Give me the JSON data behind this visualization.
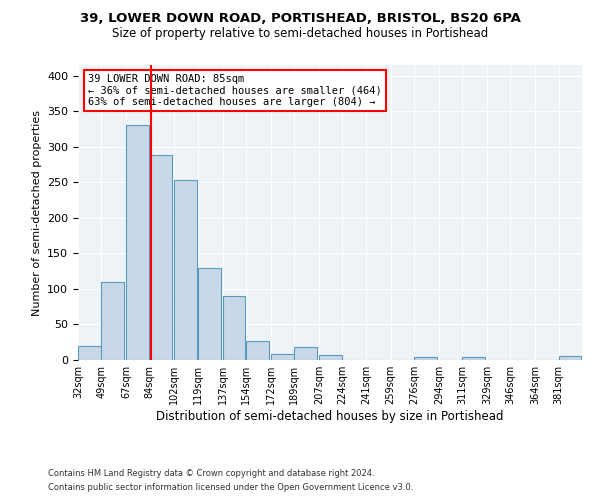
{
  "title1": "39, LOWER DOWN ROAD, PORTISHEAD, BRISTOL, BS20 6PA",
  "title2": "Size of property relative to semi-detached houses in Portishead",
  "xlabel": "Distribution of semi-detached houses by size in Portishead",
  "ylabel": "Number of semi-detached properties",
  "footnote1": "Contains HM Land Registry data © Crown copyright and database right 2024.",
  "footnote2": "Contains public sector information licensed under the Open Government Licence v3.0.",
  "annotation_line1": "39 LOWER DOWN ROAD: 85sqm",
  "annotation_line2": "← 36% of semi-detached houses are smaller (464)",
  "annotation_line3": "63% of semi-detached houses are larger (804) →",
  "bar_color": "#c8d8e8",
  "bar_edge_color": "#5a9aba",
  "red_line_x": 85,
  "bins": [
    32,
    49,
    67,
    84,
    102,
    119,
    137,
    154,
    172,
    189,
    207,
    224,
    241,
    259,
    276,
    294,
    311,
    329,
    346,
    364,
    381
  ],
  "counts": [
    20,
    110,
    330,
    288,
    253,
    130,
    90,
    27,
    9,
    18,
    7,
    0,
    0,
    0,
    4,
    0,
    4,
    0,
    0,
    0,
    5
  ],
  "ylim": [
    0,
    415
  ],
  "yticks": [
    0,
    50,
    100,
    150,
    200,
    250,
    300,
    350,
    400
  ],
  "background_color": "#eef3f8",
  "grid_color": "white",
  "title1_fontsize": 9.5,
  "title2_fontsize": 8.5,
  "ylabel_fontsize": 8,
  "xlabel_fontsize": 8.5,
  "footnote_fontsize": 6.0,
  "annotation_fontsize": 7.5
}
